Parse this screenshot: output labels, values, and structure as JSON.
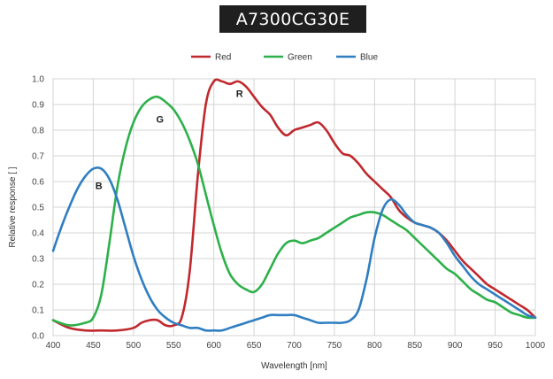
{
  "title": "A7300CG30E",
  "chart_data": {
    "type": "line",
    "xlabel": "Wavelength [nm]",
    "ylabel": "Relative response [ ]",
    "xlim": [
      400,
      1000
    ],
    "ylim": [
      0,
      1.0
    ],
    "xticks": [
      "400",
      "450",
      "500",
      "550",
      "600",
      "650",
      "700",
      "750",
      "800",
      "850",
      "900",
      "950",
      "1000"
    ],
    "yticks": [
      "0.0",
      "0.1",
      "0.2",
      "0.3",
      "0.4",
      "0.5",
      "0.6",
      "0.7",
      "0.8",
      "0.9",
      "1.0"
    ],
    "grid": true,
    "legend_position": "top-center",
    "series": [
      {
        "name": "Red",
        "color": "#c0282d",
        "x": [
          400,
          420,
          440,
          460,
          480,
          500,
          510,
          520,
          530,
          540,
          550,
          560,
          570,
          580,
          590,
          600,
          610,
          620,
          630,
          640,
          650,
          660,
          670,
          680,
          690,
          700,
          710,
          720,
          730,
          740,
          750,
          760,
          770,
          780,
          790,
          800,
          810,
          820,
          830,
          840,
          850,
          860,
          870,
          880,
          890,
          900,
          910,
          920,
          930,
          940,
          950,
          960,
          970,
          980,
          990,
          1000
        ],
        "y": [
          0.06,
          0.03,
          0.02,
          0.02,
          0.02,
          0.03,
          0.05,
          0.06,
          0.06,
          0.04,
          0.04,
          0.07,
          0.25,
          0.62,
          0.9,
          0.99,
          0.99,
          0.98,
          0.99,
          0.97,
          0.93,
          0.89,
          0.86,
          0.81,
          0.78,
          0.8,
          0.81,
          0.82,
          0.83,
          0.8,
          0.75,
          0.71,
          0.7,
          0.67,
          0.63,
          0.6,
          0.57,
          0.54,
          0.49,
          0.46,
          0.44,
          0.43,
          0.42,
          0.4,
          0.37,
          0.33,
          0.29,
          0.26,
          0.23,
          0.2,
          0.18,
          0.16,
          0.14,
          0.12,
          0.1,
          0.07
        ]
      },
      {
        "name": "Green",
        "color": "#2db04a",
        "x": [
          400,
          420,
          440,
          450,
          460,
          470,
          480,
          490,
          500,
          510,
          520,
          530,
          540,
          550,
          560,
          570,
          580,
          590,
          600,
          610,
          620,
          630,
          640,
          650,
          660,
          670,
          680,
          690,
          700,
          710,
          720,
          730,
          740,
          750,
          760,
          770,
          780,
          790,
          800,
          810,
          820,
          830,
          840,
          850,
          860,
          870,
          880,
          890,
          900,
          910,
          920,
          930,
          940,
          950,
          960,
          970,
          980,
          990,
          1000
        ],
        "y": [
          0.06,
          0.04,
          0.05,
          0.07,
          0.16,
          0.36,
          0.58,
          0.73,
          0.83,
          0.89,
          0.92,
          0.93,
          0.91,
          0.88,
          0.83,
          0.76,
          0.67,
          0.55,
          0.43,
          0.32,
          0.24,
          0.2,
          0.18,
          0.17,
          0.2,
          0.26,
          0.32,
          0.36,
          0.37,
          0.36,
          0.37,
          0.38,
          0.4,
          0.42,
          0.44,
          0.46,
          0.47,
          0.48,
          0.48,
          0.47,
          0.45,
          0.43,
          0.41,
          0.38,
          0.35,
          0.32,
          0.29,
          0.26,
          0.24,
          0.21,
          0.18,
          0.16,
          0.14,
          0.13,
          0.11,
          0.09,
          0.08,
          0.07,
          0.07
        ]
      },
      {
        "name": "Blue",
        "color": "#2f7ec1",
        "x": [
          400,
          410,
          420,
          430,
          440,
          450,
          460,
          470,
          480,
          490,
          500,
          510,
          520,
          530,
          540,
          550,
          560,
          570,
          580,
          590,
          600,
          610,
          620,
          630,
          640,
          650,
          660,
          670,
          680,
          690,
          700,
          710,
          720,
          730,
          740,
          750,
          760,
          770,
          780,
          790,
          800,
          810,
          820,
          830,
          840,
          850,
          860,
          870,
          880,
          890,
          900,
          910,
          920,
          930,
          940,
          950,
          960,
          970,
          980,
          990,
          1000
        ],
        "y": [
          0.33,
          0.42,
          0.5,
          0.57,
          0.62,
          0.65,
          0.65,
          0.61,
          0.53,
          0.42,
          0.31,
          0.22,
          0.15,
          0.1,
          0.07,
          0.05,
          0.04,
          0.03,
          0.03,
          0.02,
          0.02,
          0.02,
          0.03,
          0.04,
          0.05,
          0.06,
          0.07,
          0.08,
          0.08,
          0.08,
          0.08,
          0.07,
          0.06,
          0.05,
          0.05,
          0.05,
          0.05,
          0.06,
          0.1,
          0.22,
          0.38,
          0.49,
          0.53,
          0.51,
          0.47,
          0.44,
          0.43,
          0.42,
          0.4,
          0.36,
          0.31,
          0.27,
          0.23,
          0.2,
          0.18,
          0.16,
          0.14,
          0.12,
          0.1,
          0.08,
          0.07
        ]
      }
    ],
    "annotations": [
      {
        "text": "R",
        "x": 632,
        "y": 0.93
      },
      {
        "text": "G",
        "x": 533,
        "y": 0.83
      },
      {
        "text": "B",
        "x": 457,
        "y": 0.57
      }
    ]
  }
}
